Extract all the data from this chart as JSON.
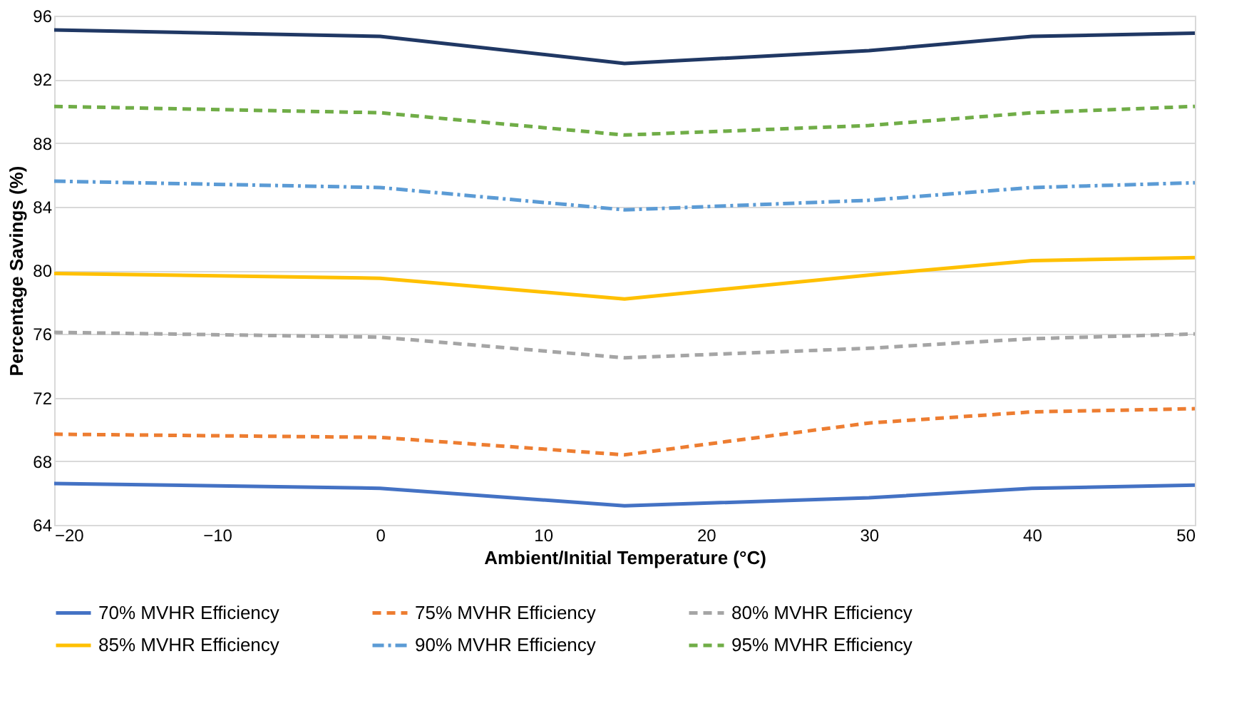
{
  "chart_data": {
    "type": "line",
    "xlabel": "Ambient/Initial Temperature (°C)",
    "ylabel": "Percentage Savings (%)",
    "x": [
      -20,
      0,
      15,
      30,
      40,
      50
    ],
    "xlim": [
      -20,
      50
    ],
    "xticks": [
      -20,
      -10,
      0,
      10,
      20,
      30,
      40,
      50
    ],
    "ylim": [
      64,
      96
    ],
    "yticks": [
      64,
      68,
      72,
      76,
      80,
      84,
      88,
      92,
      96
    ],
    "grid": "y",
    "legend": "bottom",
    "marker": "none",
    "series": [
      {
        "name": "70% MVHR Efficiency",
        "color": "#4472c4",
        "line_style": "solid",
        "values": [
          66.6,
          66.3,
          65.2,
          65.7,
          66.3,
          66.5
        ]
      },
      {
        "name": "75% MVHR Efficiency",
        "color": "#ed7d31",
        "line_style": "dashed",
        "values": [
          69.7,
          69.5,
          68.4,
          70.4,
          71.1,
          71.3
        ]
      },
      {
        "name": "80% MVHR Efficiency",
        "color": "#a5a5a5",
        "line_style": "dashed",
        "values": [
          76.1,
          75.8,
          74.5,
          75.1,
          75.7,
          76.0
        ]
      },
      {
        "name": "85% MVHR Efficiency",
        "color": "#ffc000",
        "line_style": "solid",
        "values": [
          79.8,
          79.5,
          78.2,
          79.7,
          80.6,
          80.8
        ]
      },
      {
        "name": "90% MVHR Efficiency",
        "color": "#5b9bd5",
        "line_style": "dashdot",
        "values": [
          85.6,
          85.2,
          83.8,
          84.4,
          85.2,
          85.5
        ]
      },
      {
        "name": "95% MVHR Efficiency",
        "color": "#70ad47",
        "line_style": "dashed",
        "values": [
          90.3,
          89.9,
          88.5,
          89.1,
          89.9,
          90.3
        ]
      },
      {
        "color": "#203864",
        "line_style": "solid",
        "values": [
          95.1,
          94.7,
          93.0,
          93.8,
          94.7,
          94.9
        ]
      }
    ]
  }
}
